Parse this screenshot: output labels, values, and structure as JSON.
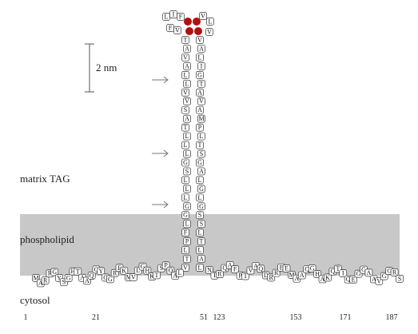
{
  "scale_bar": "2 nm",
  "labels": {
    "matrix": "matrix TAG",
    "membrane": "phospholipid",
    "cytosol": "cytosol"
  },
  "top_loop": [
    "L",
    "I",
    "F",
    "V",
    "L",
    "F",
    "V",
    "V"
  ],
  "left_helix": [
    "T",
    "A",
    "V",
    "A",
    "L",
    "L",
    "V",
    "V",
    "S",
    "A",
    "T",
    "L",
    "L",
    "L",
    "G",
    "S",
    "L",
    "L",
    "L",
    "G",
    "G",
    "L",
    "F",
    "P",
    "L",
    "T",
    "V"
  ],
  "right_helix": [
    "V",
    "A",
    "L",
    "I",
    "G",
    "T",
    "A",
    "V",
    "A",
    "M",
    "P",
    "L",
    "T",
    "S",
    "G",
    "A",
    "L",
    "G",
    "L",
    "G",
    "S",
    "S",
    "L",
    "T",
    "L",
    "A",
    "L"
  ],
  "left_strand": [
    "M",
    "A",
    "R",
    "R",
    "G",
    "Y",
    "S",
    "G",
    "H",
    "T",
    "A",
    "A",
    "Q",
    "Q",
    "Y",
    "G",
    "G",
    "R",
    "E",
    "K",
    "M",
    "V",
    "L",
    "G",
    "H",
    "K",
    "T",
    "S",
    "P",
    "Q",
    "A",
    "L"
  ],
  "right_strand": [
    "N",
    "T",
    "R",
    "Q",
    "A",
    "F",
    "P",
    "T",
    "V",
    "A",
    "Q",
    "D",
    "R",
    "R",
    "E",
    "E",
    "M",
    "A",
    "A",
    "Q",
    "G",
    "H",
    "A",
    "K",
    "Q",
    "T",
    "I",
    "Q",
    "E",
    "G",
    "G",
    "A",
    "A",
    "V",
    "G",
    "G",
    "R",
    "S"
  ],
  "positions": [
    1,
    21,
    51,
    123,
    153,
    171,
    187
  ]
}
